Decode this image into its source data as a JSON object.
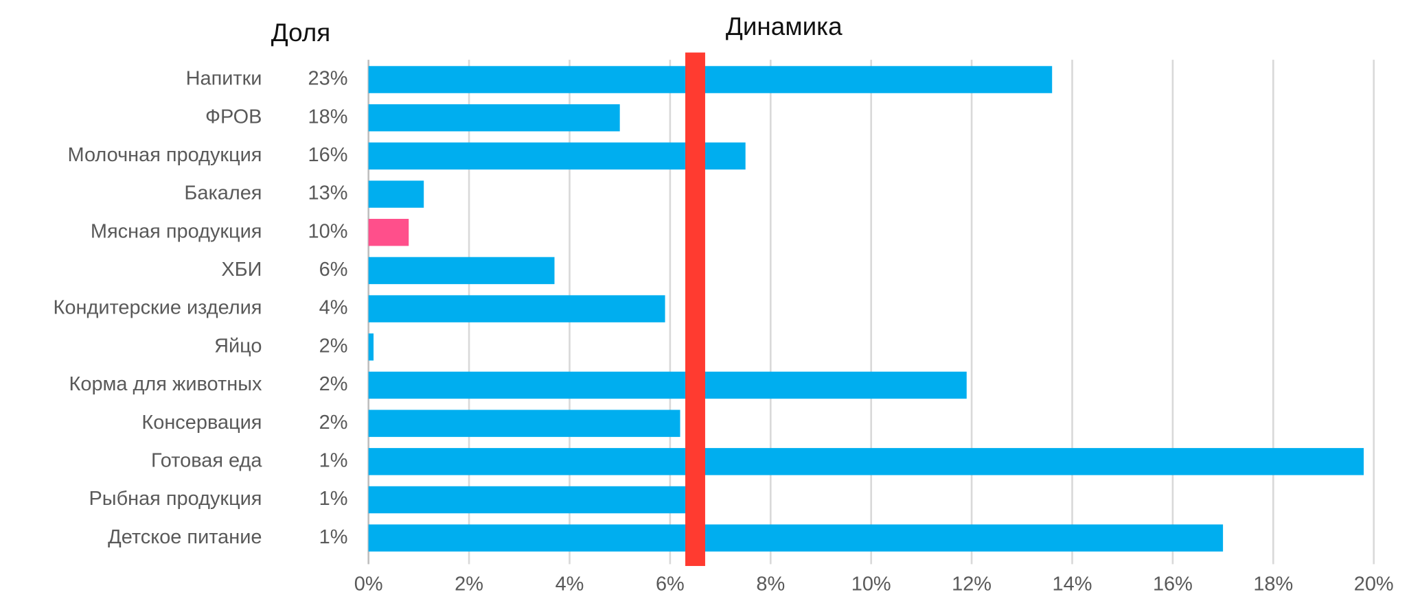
{
  "chart_data": {
    "type": "bar",
    "orientation": "horizontal",
    "title": "Динамика",
    "share_title": "Доля",
    "categories": [
      "Напитки",
      "ФРОВ",
      "Молочная продукция",
      "Бакалея",
      "Мясная продукция",
      "ХБИ",
      "Кондитерские изделия",
      "Яйцо",
      "Корма для животных",
      "Консервация",
      "Готовая еда",
      "Рыбная продукция",
      "Детское питание"
    ],
    "share_labels": [
      "23%",
      "18%",
      "16%",
      "13%",
      "10%",
      "6%",
      "4%",
      "2%",
      "2%",
      "2%",
      "1%",
      "1%",
      "1%"
    ],
    "values": [
      13.6,
      5.0,
      7.5,
      1.1,
      0.8,
      3.7,
      5.9,
      0.1,
      11.9,
      6.2,
      19.8,
      6.4,
      17.0
    ],
    "colors": [
      "#00aeef",
      "#00aeef",
      "#00aeef",
      "#00aeef",
      "#ff4f8b",
      "#00aeef",
      "#00aeef",
      "#00aeef",
      "#00aeef",
      "#00aeef",
      "#00aeef",
      "#00aeef",
      "#00aeef"
    ],
    "reference_value": 6.5,
    "reference_color": "#ff3b30",
    "xlim": [
      0,
      20
    ],
    "xticks": [
      {
        "value": 0,
        "label": "0%"
      },
      {
        "value": 2,
        "label": "2%"
      },
      {
        "value": 4,
        "label": "4%"
      },
      {
        "value": 6,
        "label": "6%"
      },
      {
        "value": 8,
        "label": "8%"
      },
      {
        "value": 10,
        "label": "10%"
      },
      {
        "value": 12,
        "label": "12%"
      },
      {
        "value": 14,
        "label": "14%"
      },
      {
        "value": 16,
        "label": "16%"
      },
      {
        "value": 18,
        "label": "18%"
      },
      {
        "value": 20,
        "label": "20%"
      }
    ],
    "grid": true
  }
}
